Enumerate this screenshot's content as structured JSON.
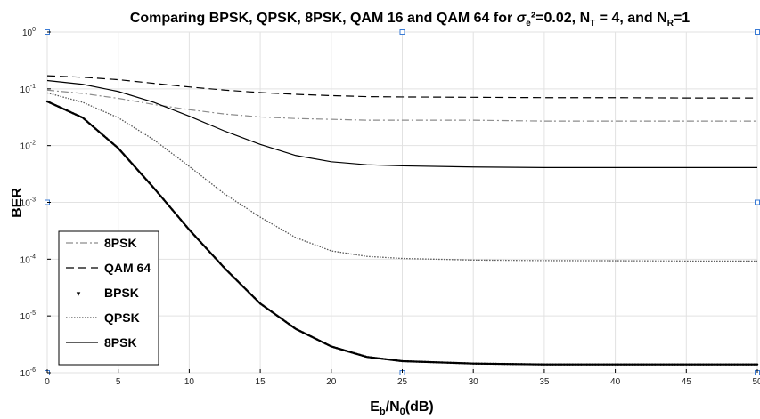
{
  "chart_data": {
    "type": "line",
    "title": "Comparing BPSK, QPSK, 8PSK, QAM 16 and QAM 64 for σe²=0.02, NT = 4, and NR=1",
    "title_parts": {
      "prefix": "Comparing BPSK, QPSK, 8PSK, QAM 16 and QAM 64 for ",
      "sigma": "σ",
      "sigma_sub": "e",
      "mid": "²=0.02, N",
      "nt_sub": "T",
      "mid2": " = 4, and N",
      "nr_sub": "R",
      "suffix": "=1"
    },
    "xlabel_parts": {
      "e": "E",
      "b": "b",
      "slash": "/N",
      "zero": "0",
      "unit": "(dB)"
    },
    "ylabel": "BER",
    "xlim": [
      0,
      50
    ],
    "ylim": [
      1e-06,
      1
    ],
    "yscale": "log",
    "grid": true,
    "legend_position": "bottom-left",
    "x_ticks": [
      "0",
      "5",
      "10",
      "15",
      "20",
      "25",
      "30",
      "35",
      "40",
      "45",
      "50"
    ],
    "y_ticks": [
      {
        "base": "10",
        "exp": "0"
      },
      {
        "base": "10",
        "exp": "-1"
      },
      {
        "base": "10",
        "exp": "-2"
      },
      {
        "base": "10",
        "exp": "-3"
      },
      {
        "base": "10",
        "exp": "-4"
      },
      {
        "base": "10",
        "exp": "-5"
      },
      {
        "base": "10",
        "exp": "-6"
      }
    ],
    "x": [
      0,
      2.5,
      5,
      7.5,
      10,
      12.5,
      15,
      17.5,
      20,
      22.5,
      25,
      30,
      35,
      40,
      45,
      50
    ],
    "series": [
      {
        "name": "8PSK",
        "style": "dashdot",
        "color": "#8c8c8c",
        "values": [
          0.095,
          0.083,
          0.068,
          0.053,
          0.043,
          0.036,
          0.032,
          0.03,
          0.029,
          0.028,
          0.028,
          0.028,
          0.027,
          0.027,
          0.027,
          0.027
        ]
      },
      {
        "name": "QAM 64",
        "style": "dashed",
        "color": "#000000",
        "values": [
          0.17,
          0.16,
          0.145,
          0.125,
          0.108,
          0.095,
          0.086,
          0.08,
          0.076,
          0.073,
          0.072,
          0.071,
          0.07,
          0.07,
          0.069,
          0.069
        ]
      },
      {
        "name": "BPSK",
        "style": "markers",
        "color": "#000000",
        "values": [
          0.06,
          0.031,
          0.009,
          0.0018,
          0.00033,
          6.89e-05,
          1.65e-05,
          5.9e-06,
          2.9e-06,
          1.9e-06,
          1.6e-06,
          1.45e-06,
          1.4e-06,
          1.4e-06,
          1.4e-06,
          1.4e-06
        ]
      },
      {
        "name": "QPSK",
        "style": "dotted",
        "color": "#555555",
        "values": [
          0.085,
          0.058,
          0.031,
          0.0127,
          0.0043,
          0.0014,
          0.00055,
          0.00024,
          0.00014,
          0.000112,
          0.000103,
          9.65e-05,
          9.45e-05,
          9.4e-05,
          9.3e-05,
          9.3e-05
        ]
      },
      {
        "name": "8PSK",
        "style": "solid",
        "color": "#000000",
        "values": [
          0.14,
          0.12,
          0.09,
          0.058,
          0.033,
          0.018,
          0.0105,
          0.0067,
          0.0052,
          0.0046,
          0.0044,
          0.0042,
          0.0041,
          0.0041,
          0.0041,
          0.0041
        ]
      }
    ]
  }
}
